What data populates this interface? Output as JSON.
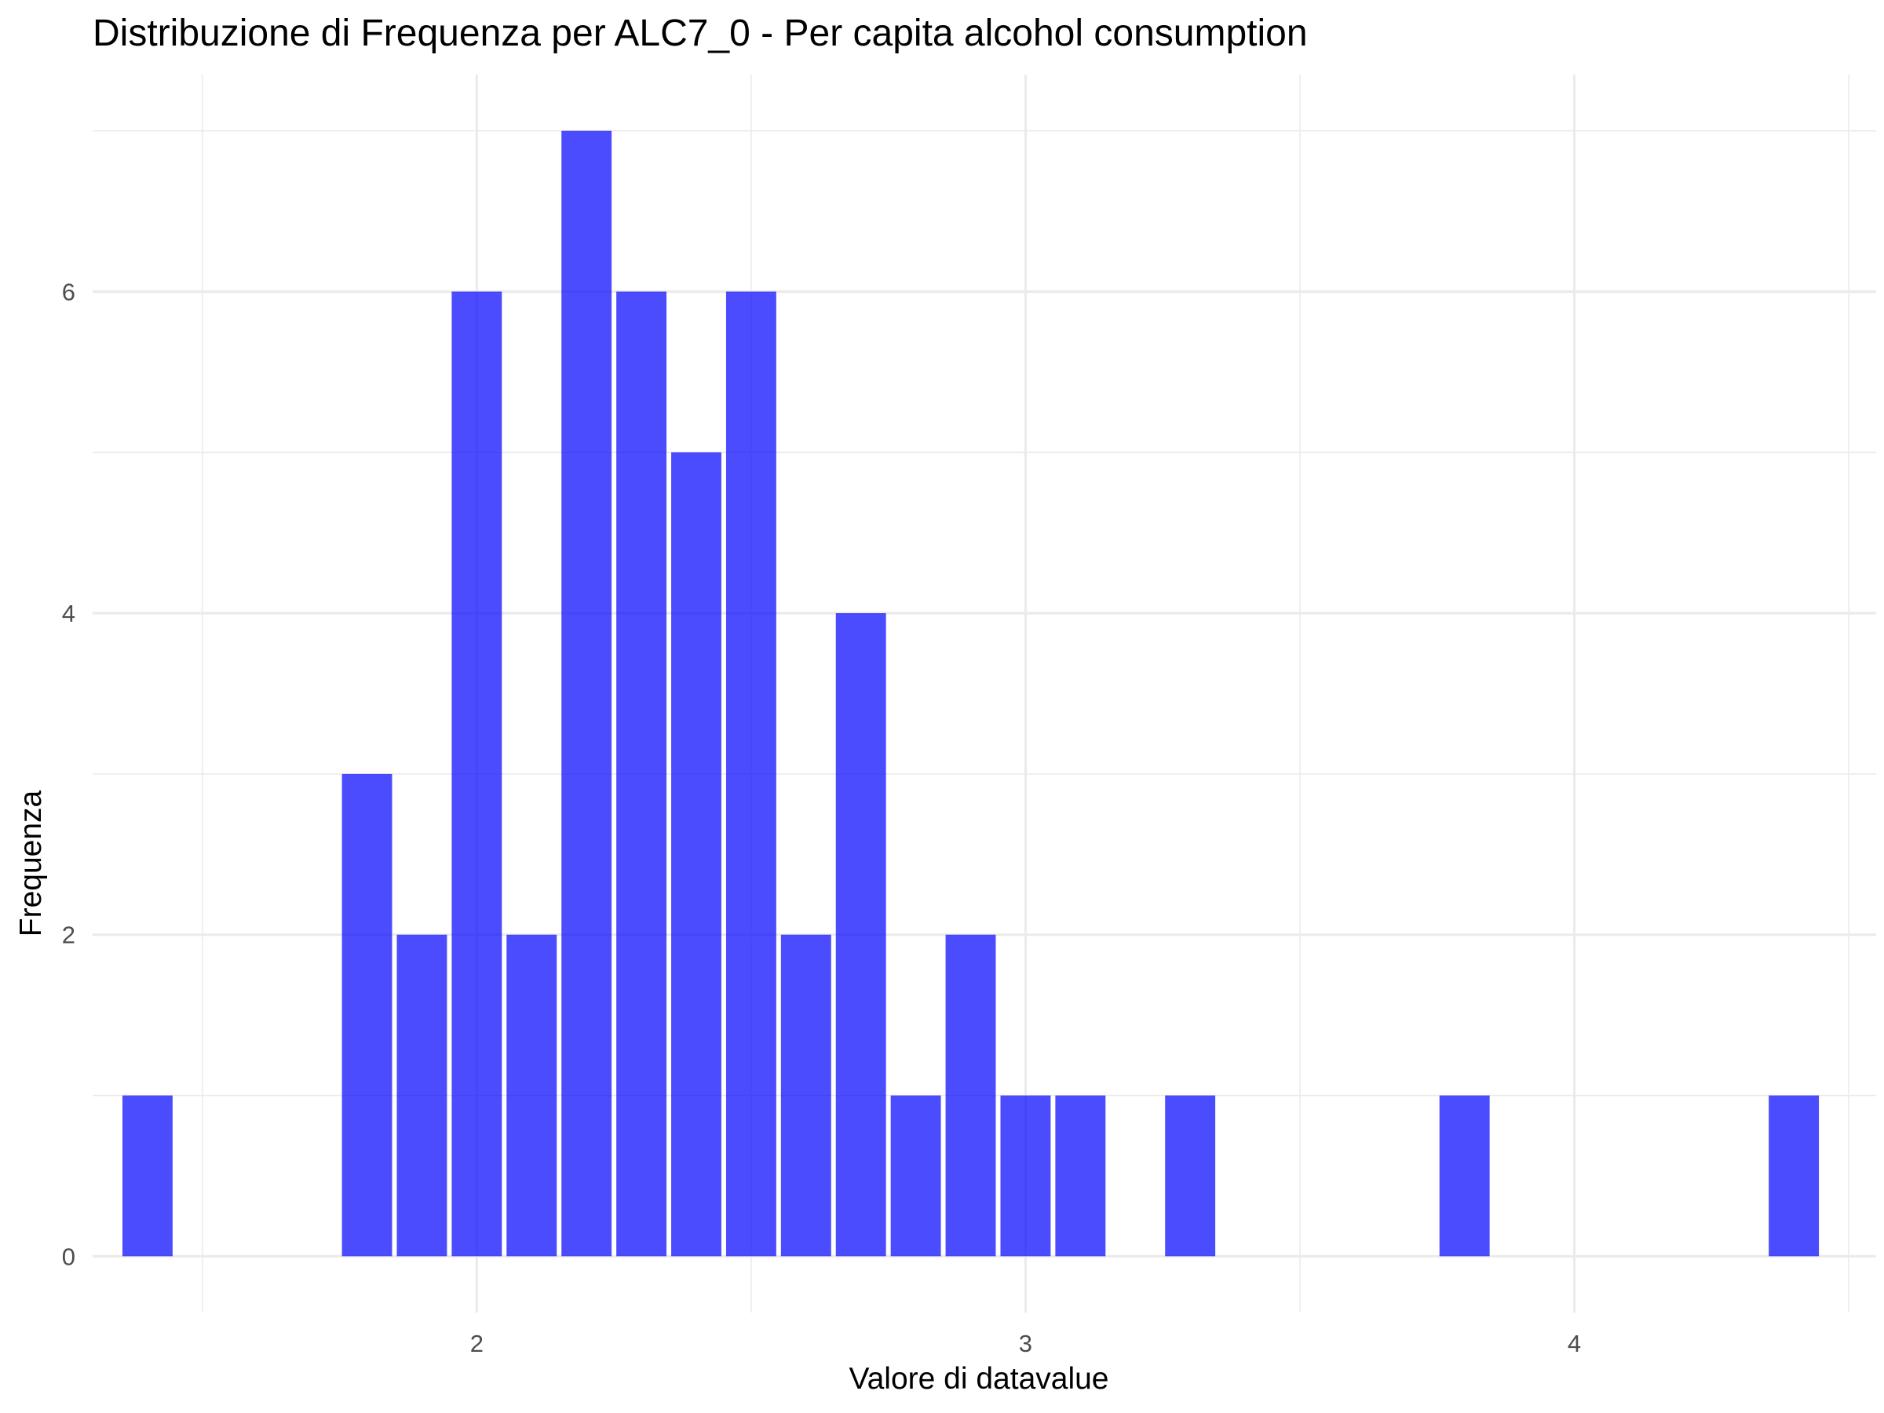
{
  "chart_data": {
    "type": "bar",
    "title": "Distribuzione di Frequenza per ALC7_0 - Per capita alcohol consumption",
    "xlabel": "Valore di datavalue",
    "ylabel": "Frequenza",
    "bin_width": 0.1,
    "bins": [
      {
        "x": 1.4,
        "count": 1
      },
      {
        "x": 1.8,
        "count": 3
      },
      {
        "x": 1.9,
        "count": 2
      },
      {
        "x": 2.0,
        "count": 6
      },
      {
        "x": 2.1,
        "count": 2
      },
      {
        "x": 2.2,
        "count": 7
      },
      {
        "x": 2.3,
        "count": 6
      },
      {
        "x": 2.4,
        "count": 5
      },
      {
        "x": 2.5,
        "count": 6
      },
      {
        "x": 2.6,
        "count": 2
      },
      {
        "x": 2.7,
        "count": 4
      },
      {
        "x": 2.8,
        "count": 1
      },
      {
        "x": 2.9,
        "count": 2
      },
      {
        "x": 3.0,
        "count": 1
      },
      {
        "x": 3.1,
        "count": 1
      },
      {
        "x": 3.3,
        "count": 1
      },
      {
        "x": 3.8,
        "count": 1
      },
      {
        "x": 4.4,
        "count": 1
      }
    ],
    "xlim": [
      1.3,
      4.55
    ],
    "ylim": [
      -0.35,
      7.35
    ],
    "x_ticks": [
      2,
      3,
      4
    ],
    "x_tick_labels": [
      "2",
      "3",
      "4"
    ],
    "x_minor_ticks": [
      1.5,
      2.5,
      3.5,
      4.5
    ],
    "y_ticks": [
      0,
      2,
      4,
      6
    ],
    "y_tick_labels": [
      "0",
      "2",
      "4",
      "6"
    ],
    "y_minor_ticks": [
      1,
      3,
      5,
      7
    ],
    "grid": true,
    "legend": "none",
    "bar_color": "#0000ff",
    "bar_opacity": 0.7,
    "grid_color": "#ebebeb",
    "background": "#ffffff"
  }
}
